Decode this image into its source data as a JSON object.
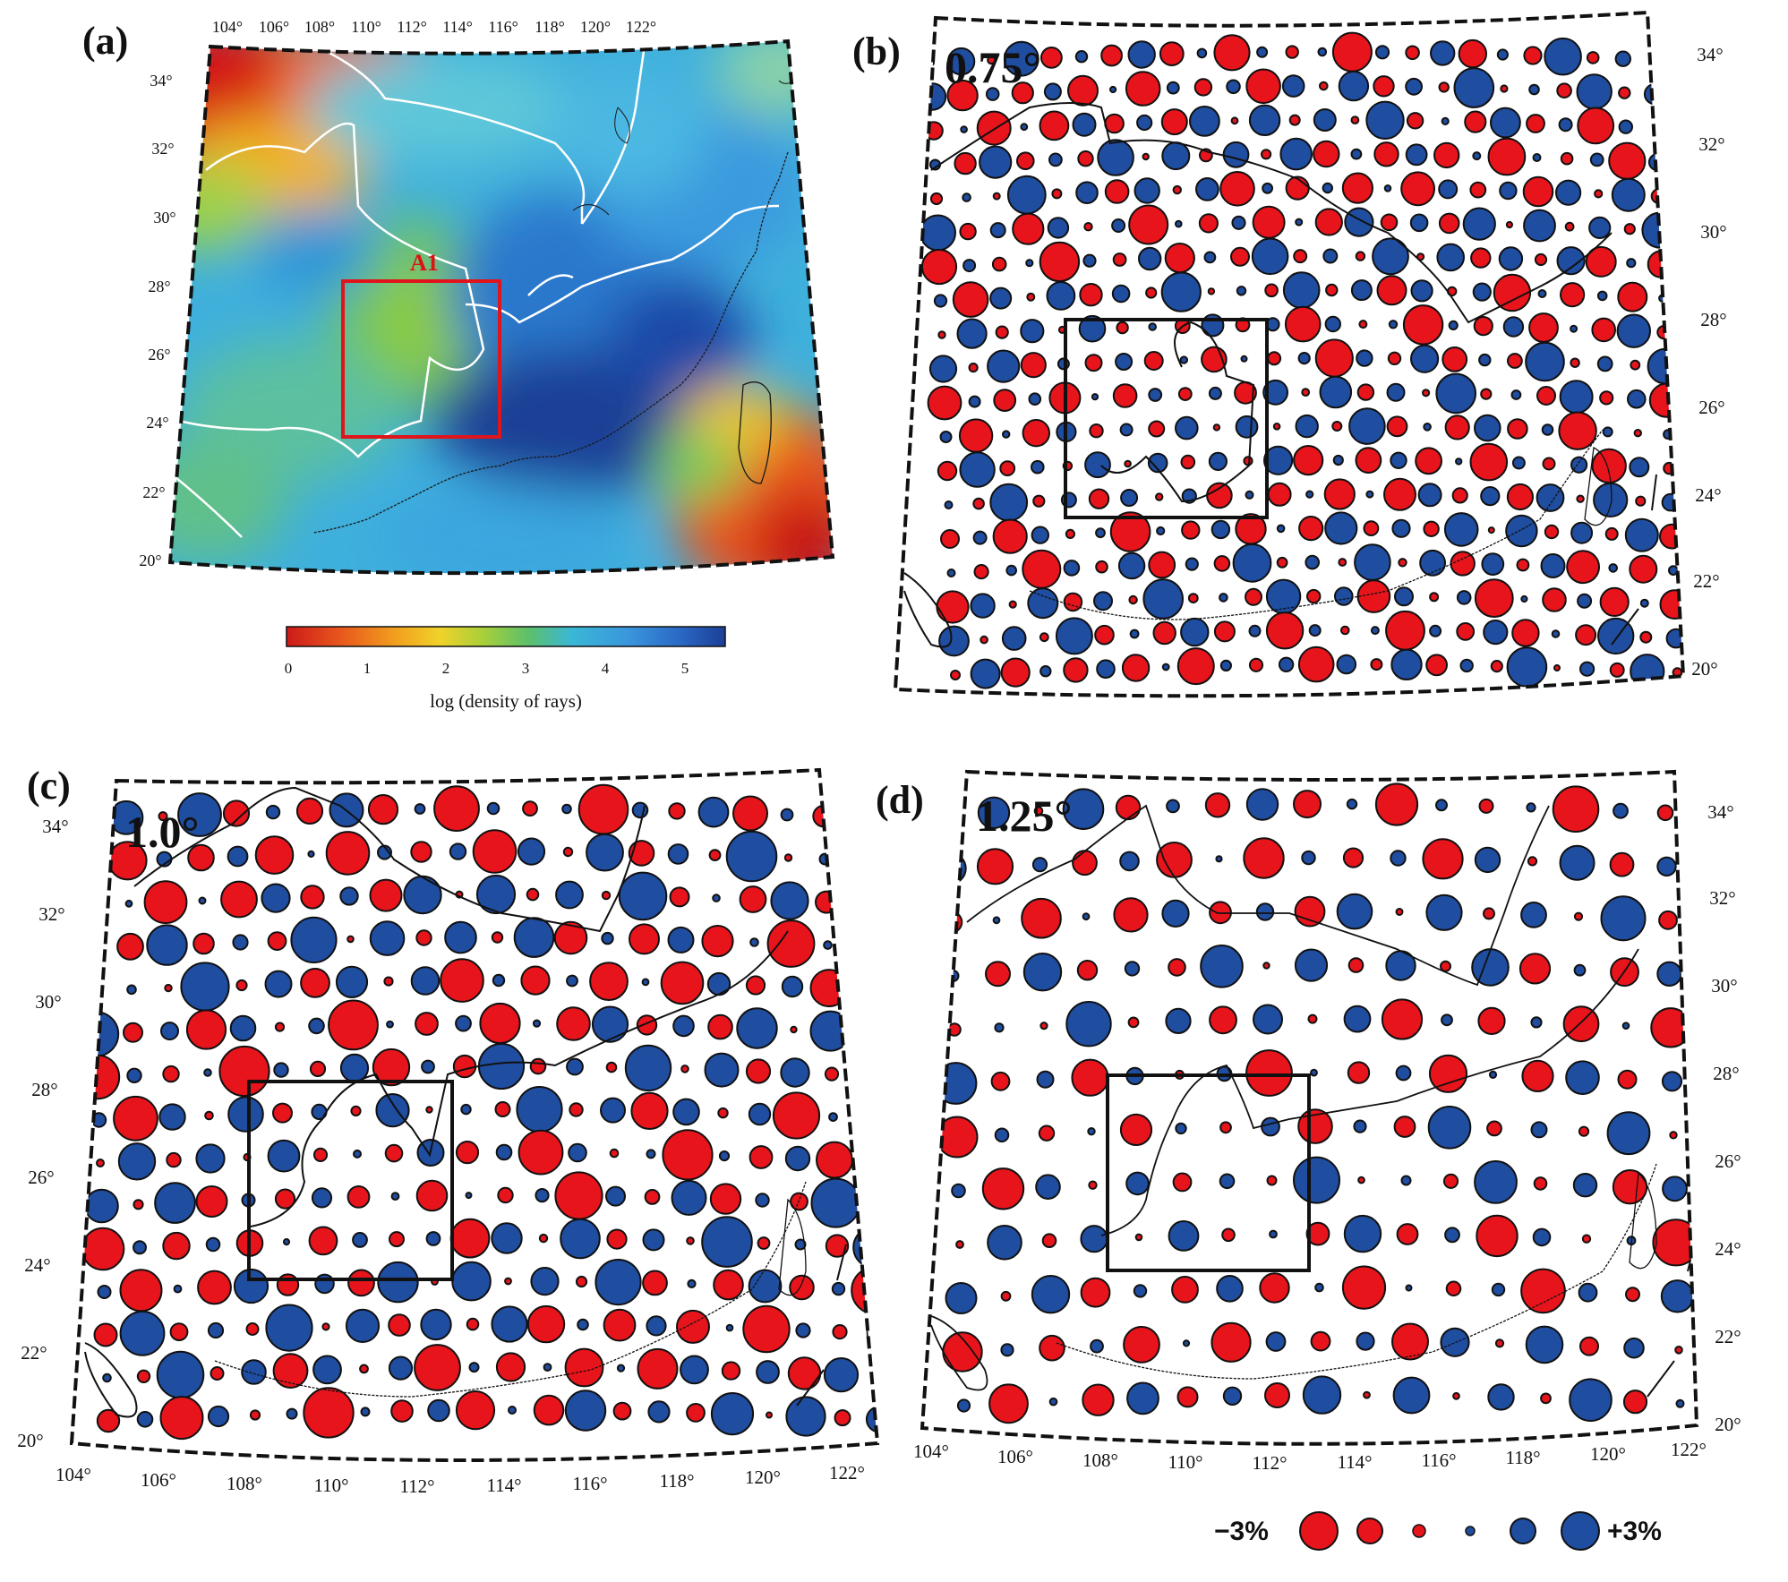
{
  "panels": {
    "a": {
      "label": "(a)",
      "box_label": "A1",
      "lon_ticks": [
        "104°",
        "106°",
        "108°",
        "110°",
        "112°",
        "114°",
        "116°",
        "118°",
        "120°",
        "122°"
      ],
      "lat_ticks": [
        "34°",
        "32°",
        "30°",
        "28°",
        "26°",
        "24°",
        "22°",
        "20°"
      ]
    },
    "b": {
      "label": "(b)",
      "resolution": "0.75°",
      "lat_ticks": [
        "34°",
        "32°",
        "30°",
        "28°",
        "26°",
        "24°",
        "22°",
        "20°"
      ]
    },
    "c": {
      "label": "(c)",
      "resolution": "1.0°",
      "lat_ticks": [
        "34°",
        "32°",
        "30°",
        "28°",
        "26°",
        "24°",
        "22°",
        "20°"
      ],
      "lon_ticks": [
        "104°",
        "106°",
        "108°",
        "110°",
        "112°",
        "114°",
        "116°",
        "118°",
        "120°",
        "122°"
      ]
    },
    "d": {
      "label": "(d)",
      "resolution": "1.25°",
      "lat_ticks": [
        "34°",
        "32°",
        "30°",
        "28°",
        "26°",
        "24°",
        "22°",
        "20°"
      ],
      "lon_ticks": [
        "104°",
        "106°",
        "108°",
        "110°",
        "112°",
        "114°",
        "116°",
        "118°",
        "120°",
        "122°"
      ]
    }
  },
  "colorbar": {
    "title": "log (density of rays)",
    "ticks": [
      "0",
      "1",
      "2",
      "3",
      "4",
      "5"
    ],
    "colors": [
      "#cc1a1a",
      "#e8551c",
      "#f2a01e",
      "#f0d22a",
      "#a7cf3a",
      "#5dc06a",
      "#3ab7d6",
      "#3a96dc",
      "#2a67c4",
      "#1c3f96"
    ]
  },
  "legend": {
    "minus_label": "−3%",
    "plus_label": "+3%",
    "red_color": "#e8141b",
    "blue_color": "#1f4da0"
  }
}
